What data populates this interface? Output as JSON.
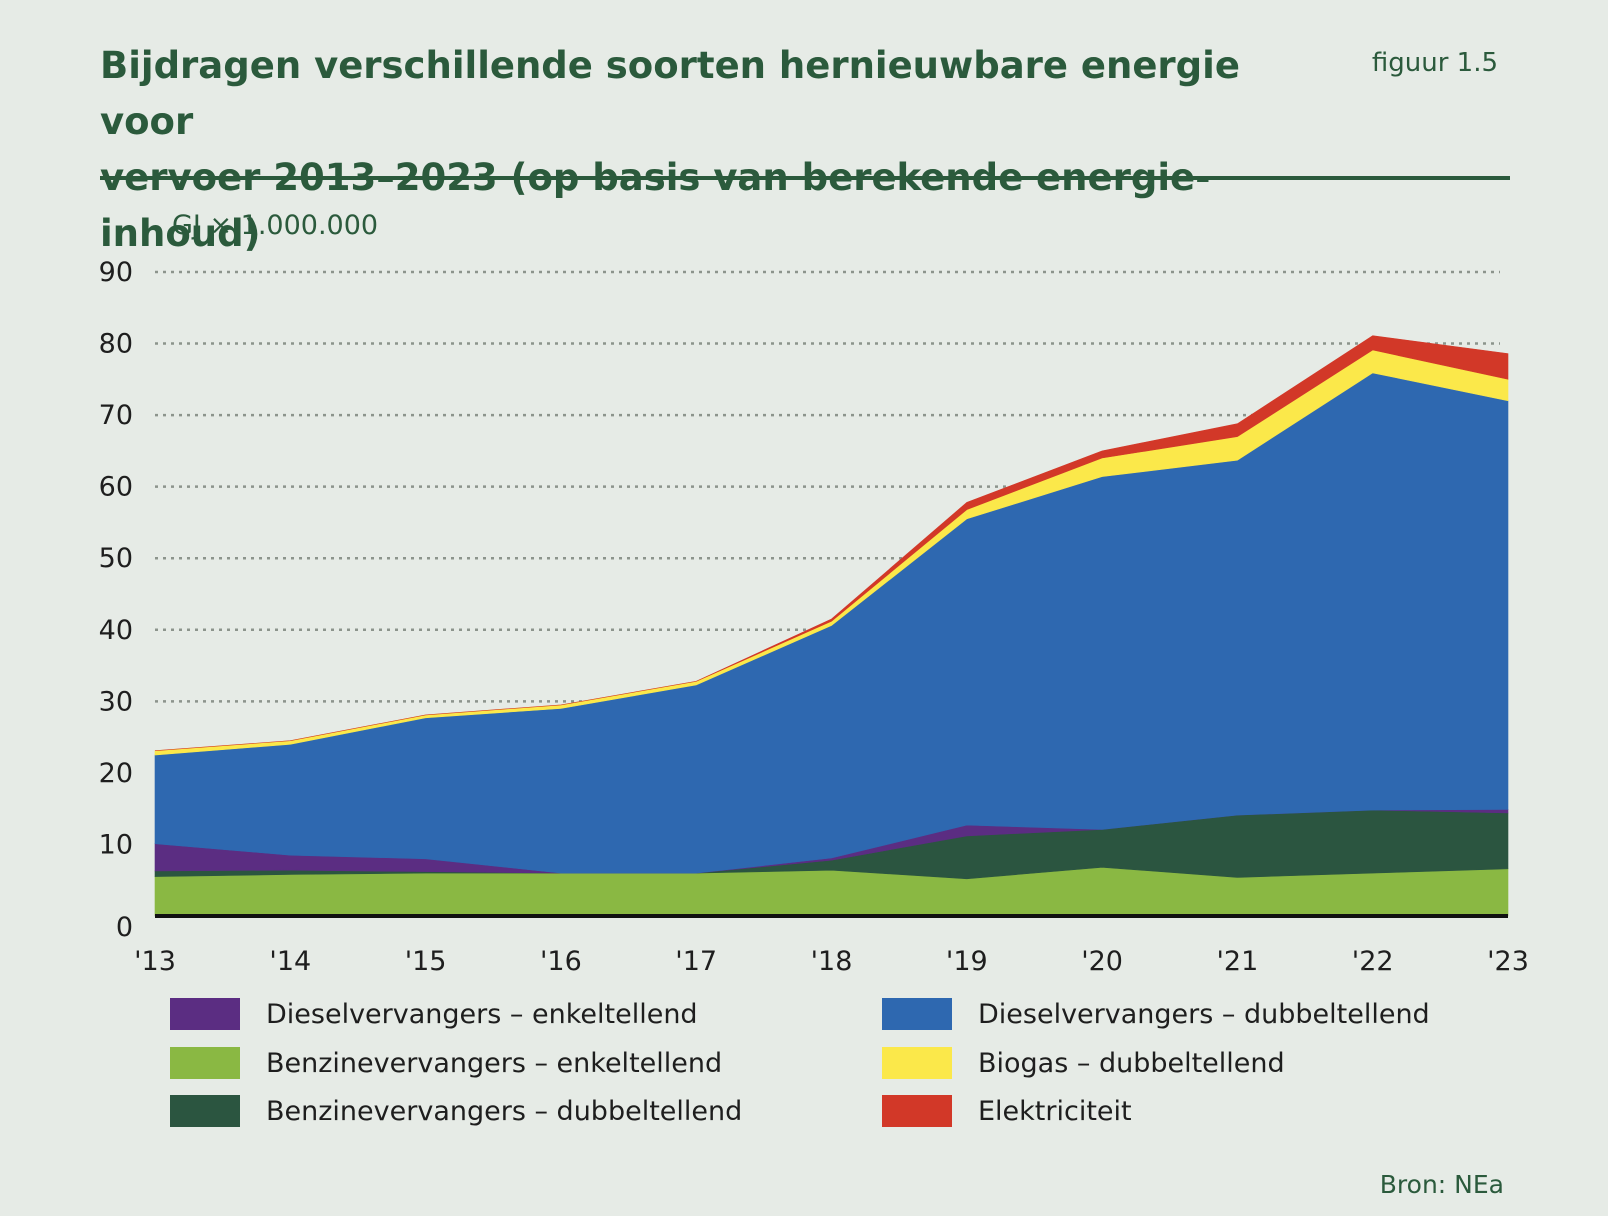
{
  "header": {
    "title_line1": "Bijdragen verschillende soorten hernieuwbare energie voor",
    "title_line2": "vervoer 2013–2023 (op basis van berekende energie-inhoud)",
    "figure_label": "figuur 1.5"
  },
  "source": "Bron: NEa",
  "chart_data": {
    "type": "area",
    "stacked": true,
    "ylabel": "GJ × 1.000.000",
    "ylim": [
      0,
      90
    ],
    "yticks": [
      0,
      10,
      20,
      30,
      40,
      50,
      60,
      70,
      80,
      90
    ],
    "x": [
      "'13",
      "'14",
      "'15",
      "'16",
      "'17",
      "'18",
      "'19",
      "'20",
      "'21",
      "'22",
      "'23"
    ],
    "grid": "horizontal dotted",
    "legend_position": "bottom",
    "series": [
      {
        "name": "Benzinevervangers – enkeltellend",
        "color": "#8ab843",
        "values": [
          5.5,
          5.8,
          6.0,
          6.0,
          6.0,
          6.4,
          5.2,
          6.8,
          5.4,
          6.0,
          6.6
        ]
      },
      {
        "name": "Benzinevervangers – dubbeltellend",
        "color": "#2b5540",
        "values": [
          0.8,
          0.6,
          0.2,
          0.0,
          0.0,
          1.4,
          6.0,
          5.3,
          8.7,
          8.8,
          7.8
        ]
      },
      {
        "name": "Dieselvervangers – enkeltellend",
        "color": "#5b2d82",
        "values": [
          3.8,
          2.1,
          1.8,
          0.0,
          0.0,
          0.3,
          1.5,
          0.0,
          0.0,
          0.0,
          0.5
        ]
      },
      {
        "name": "Dieselvervangers – dubbeltellend",
        "color": "#2e68b0",
        "values": [
          12.4,
          15.5,
          19.7,
          23.0,
          26.3,
          32.5,
          42.8,
          49.3,
          49.6,
          61.1,
          57.1
        ]
      },
      {
        "name": "Biogas – dubbeltellend",
        "color": "#fbe84a",
        "values": [
          0.6,
          0.5,
          0.4,
          0.5,
          0.5,
          0.6,
          1.3,
          2.6,
          3.3,
          3.2,
          3.0
        ]
      },
      {
        "name": "Elektriciteit",
        "color": "#d23828",
        "values": [
          0.0,
          0.0,
          0.0,
          0.0,
          0.0,
          0.3,
          1.0,
          1.0,
          1.8,
          2.0,
          3.6
        ]
      }
    ]
  },
  "legend": {
    "left": [
      {
        "label": "Dieselvervangers – enkeltellend",
        "color": "#5b2d82"
      },
      {
        "label": "Benzinevervangers – enkeltellend",
        "color": "#8ab843"
      },
      {
        "label": "Benzinevervangers – dubbeltellend",
        "color": "#2b5540"
      }
    ],
    "right": [
      {
        "label": "Dieselvervangers – dubbeltellend",
        "color": "#2e68b0"
      },
      {
        "label": "Biogas – dubbeltellend",
        "color": "#fbe84a"
      },
      {
        "label": "Elektriciteit",
        "color": "#d23828"
      }
    ]
  }
}
